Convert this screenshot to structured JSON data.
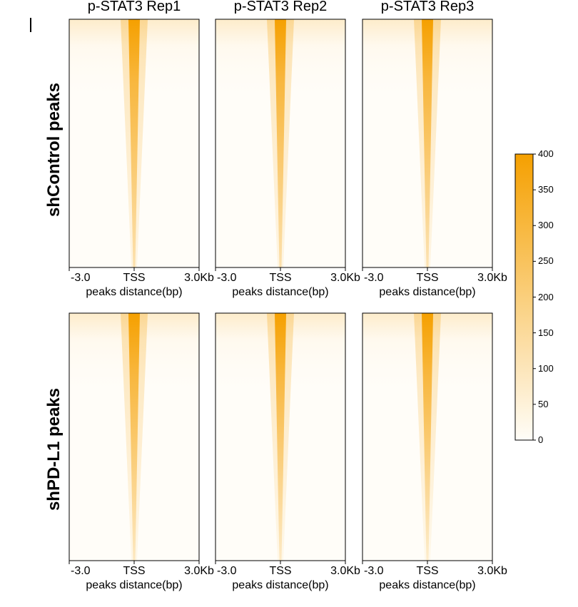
{
  "chart_data": {
    "type": "heatmap",
    "column_titles": [
      "p-STAT3 Rep1",
      "p-STAT3 Rep2",
      "p-STAT3 Rep3"
    ],
    "row_labels": [
      "shControl peaks",
      "shPD-L1 peaks"
    ],
    "x_tick_labels": [
      "-3.0",
      "TSS",
      "3.0Kb"
    ],
    "xlabel": "peaks distance(bp)",
    "xlim_kb": [
      -3.0,
      3.0
    ],
    "colorbar": {
      "ticks": [
        0,
        50,
        100,
        150,
        200,
        250,
        300,
        350,
        400
      ],
      "range": [
        0,
        400
      ],
      "low_color": "#fffdf8",
      "high_color": "#f5a000"
    },
    "panels": [
      {
        "row": "shControl peaks",
        "column": "p-STAT3 Rep1",
        "peak_signal_top": 400,
        "peak_signal_bottom": 120
      },
      {
        "row": "shControl peaks",
        "column": "p-STAT3 Rep2",
        "peak_signal_top": 400,
        "peak_signal_bottom": 120
      },
      {
        "row": "shControl peaks",
        "column": "p-STAT3 Rep3",
        "peak_signal_top": 400,
        "peak_signal_bottom": 110
      },
      {
        "row": "shPD-L1 peaks",
        "column": "p-STAT3 Rep1",
        "peak_signal_top": 400,
        "peak_signal_bottom": 90
      },
      {
        "row": "shPD-L1 peaks",
        "column": "p-STAT3 Rep2",
        "peak_signal_top": 400,
        "peak_signal_bottom": 80
      },
      {
        "row": "shPD-L1 peaks",
        "column": "p-STAT3 Rep3",
        "peak_signal_top": 400,
        "peak_signal_bottom": 70
      }
    ]
  }
}
